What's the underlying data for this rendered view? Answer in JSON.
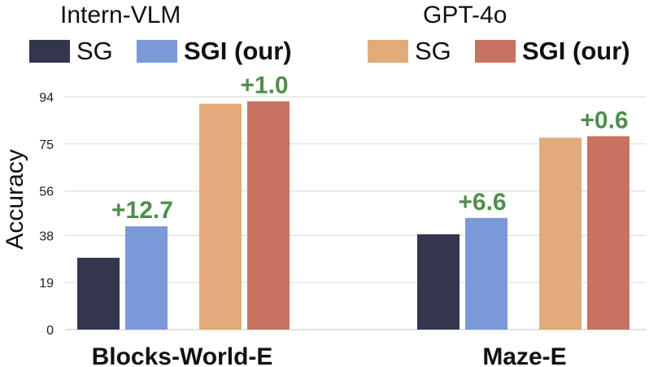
{
  "legend": {
    "groups": [
      {
        "title": "Intern-VLM",
        "items": [
          {
            "label": "SG",
            "color": "#33364d",
            "bold": false
          },
          {
            "label": "SGI (our)",
            "color": "#7b99d9",
            "bold": true
          }
        ]
      },
      {
        "title": "GPT-4o",
        "items": [
          {
            "label": "SG",
            "color": "#e2ab7b",
            "bold": false
          },
          {
            "label": "SGI (our)",
            "color": "#c87261",
            "bold": true
          }
        ]
      }
    ]
  },
  "chart_data": {
    "type": "bar",
    "categories": [
      "Blocks-World-E",
      "Maze-E"
    ],
    "series": [
      {
        "name": "Intern-VLM SG",
        "values": [
          29,
          38.5
        ],
        "color": "#33364d"
      },
      {
        "name": "Intern-VLM SGI (our)",
        "values": [
          41.7,
          45.1
        ],
        "color": "#7b99d9"
      },
      {
        "name": "GPT-4o SG",
        "values": [
          91.2,
          77.5
        ],
        "color": "#e2ab7b"
      },
      {
        "name": "GPT-4o SGI (our)",
        "values": [
          92.2,
          78.1
        ],
        "color": "#c87261"
      }
    ],
    "annotations": [
      {
        "text": "+12.7",
        "category": 0,
        "series": 1
      },
      {
        "text": "+1.0",
        "category": 0,
        "series": 3
      },
      {
        "text": "+6.6",
        "category": 1,
        "series": 1
      },
      {
        "text": "+0.6",
        "category": 1,
        "series": 3
      }
    ],
    "annotation_color": "#4f8f4c",
    "ylabel": "Accuracy",
    "xlabel": "",
    "yticks": [
      0,
      19,
      38,
      56,
      75,
      94
    ],
    "ylim": [
      0,
      94
    ],
    "grid": true,
    "legend_position": "top"
  }
}
